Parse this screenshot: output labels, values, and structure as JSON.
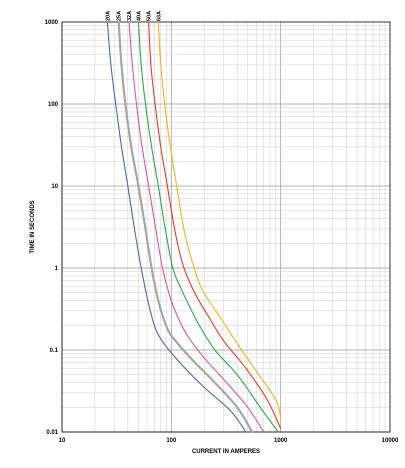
{
  "chart_data": {
    "type": "line",
    "title": "",
    "xlabel": "CURRENT IN AMPERES",
    "ylabel": "TIME IN SECONDS",
    "xscale": "log",
    "yscale": "log",
    "xlim": [
      10,
      10000
    ],
    "ylim": [
      0.01,
      1000
    ],
    "grid": true,
    "x_ticks": [
      "10",
      "100",
      "1000",
      "10000"
    ],
    "y_ticks": [
      "1000",
      "100",
      "10",
      "1",
      "0.1",
      "0.01"
    ],
    "legend": "series labels printed vertically above the plot at the top-left",
    "series": [
      {
        "name": "20A",
        "color": "#4a6aa8",
        "points": [
          [
            26,
            1000
          ],
          [
            28,
            300
          ],
          [
            31,
            100
          ],
          [
            35,
            30
          ],
          [
            40,
            10
          ],
          [
            46,
            3
          ],
          [
            53,
            1
          ],
          [
            61,
            0.4
          ],
          [
            70,
            0.2
          ],
          [
            82,
            0.13
          ],
          [
            120,
            0.07
          ],
          [
            200,
            0.035
          ],
          [
            350,
            0.018
          ],
          [
            480,
            0.01
          ]
        ]
      },
      {
        "name": "25A",
        "color": "#a6a6a6",
        "points": [
          [
            33,
            1000
          ],
          [
            35,
            300
          ],
          [
            38,
            100
          ],
          [
            43,
            30
          ],
          [
            50,
            10
          ],
          [
            58,
            3
          ],
          [
            66,
            1
          ],
          [
            76,
            0.4
          ],
          [
            87,
            0.22
          ],
          [
            100,
            0.15
          ],
          [
            150,
            0.08
          ],
          [
            250,
            0.04
          ],
          [
            400,
            0.02
          ],
          [
            550,
            0.01
          ]
        ]
      },
      {
        "name": "32A",
        "color": "#d9569e",
        "points": [
          [
            41,
            1000
          ],
          [
            44,
            300
          ],
          [
            48,
            100
          ],
          [
            54,
            30
          ],
          [
            62,
            10
          ],
          [
            72,
            3
          ],
          [
            83,
            1
          ],
          [
            97,
            0.45
          ],
          [
            115,
            0.25
          ],
          [
            140,
            0.15
          ],
          [
            200,
            0.08
          ],
          [
            320,
            0.04
          ],
          [
            500,
            0.02
          ],
          [
            700,
            0.01
          ]
        ]
      },
      {
        "name": "40A",
        "color": "#2ea64f",
        "points": [
          [
            50,
            1000
          ],
          [
            53,
            300
          ],
          [
            58,
            100
          ],
          [
            66,
            30
          ],
          [
            76,
            10
          ],
          [
            88,
            3
          ],
          [
            103,
            1
          ],
          [
            120,
            0.6
          ],
          [
            145,
            0.35
          ],
          [
            180,
            0.2
          ],
          [
            250,
            0.1
          ],
          [
            400,
            0.05
          ],
          [
            650,
            0.02
          ],
          [
            950,
            0.01
          ]
        ]
      },
      {
        "name": "50A",
        "color": "#e23b2e",
        "points": [
          [
            62,
            1000
          ],
          [
            65,
            300
          ],
          [
            71,
            100
          ],
          [
            80,
            30
          ],
          [
            92,
            10
          ],
          [
            107,
            3
          ],
          [
            125,
            1.2
          ],
          [
            145,
            0.7
          ],
          [
            170,
            0.45
          ],
          [
            210,
            0.28
          ],
          [
            300,
            0.13
          ],
          [
            480,
            0.06
          ],
          [
            750,
            0.025
          ],
          [
            1000,
            0.011
          ]
        ]
      },
      {
        "name": "63A",
        "color": "#f2b21b",
        "points": [
          [
            76,
            1000
          ],
          [
            80,
            300
          ],
          [
            87,
            100
          ],
          [
            98,
            30
          ],
          [
            112,
            10
          ],
          [
            130,
            3
          ],
          [
            155,
            1.2
          ],
          [
            185,
            0.6
          ],
          [
            220,
            0.4
          ],
          [
            280,
            0.25
          ],
          [
            400,
            0.12
          ],
          [
            600,
            0.055
          ],
          [
            900,
            0.025
          ],
          [
            1000,
            0.015
          ]
        ]
      }
    ]
  }
}
